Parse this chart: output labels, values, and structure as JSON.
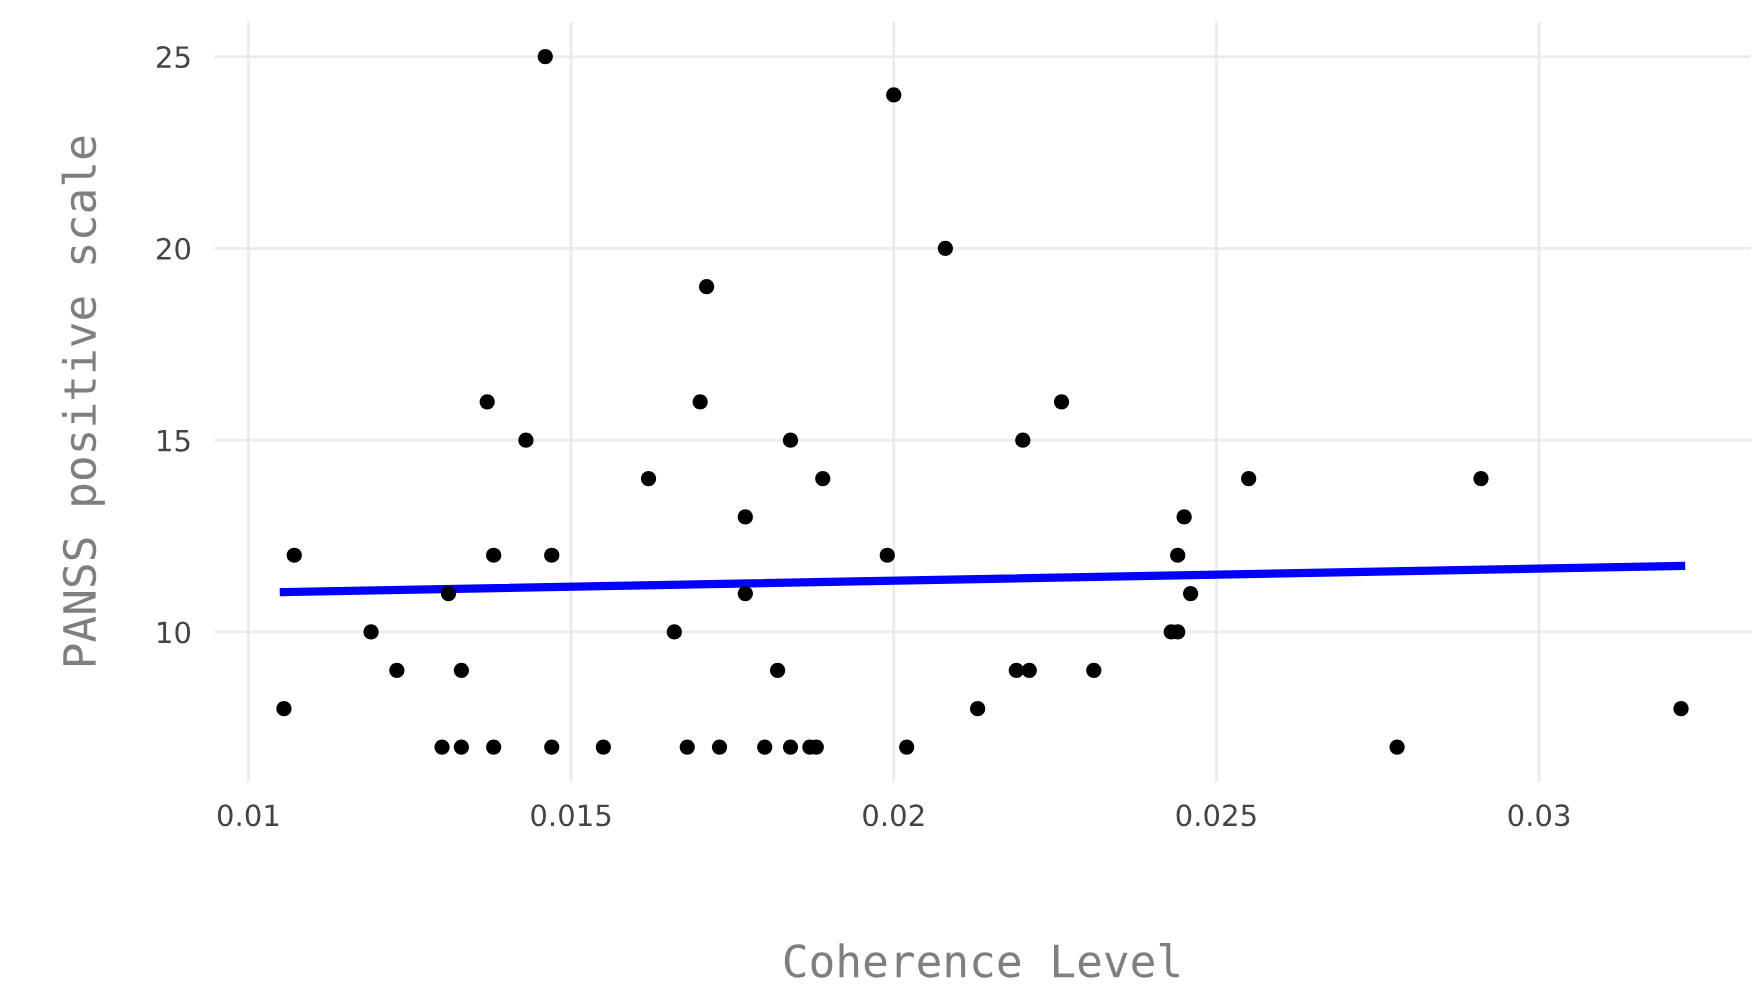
{
  "chart_data": {
    "type": "scatter",
    "xlabel": "Coherence Level",
    "ylabel": "PANSS positive scale",
    "xlim": [
      0.00947,
      0.03328
    ],
    "ylim": [
      6.1,
      25.9
    ],
    "xticks": [
      0.01,
      0.015,
      0.02,
      0.025,
      0.03
    ],
    "yticks": [
      10,
      15,
      20,
      25
    ],
    "grid": true,
    "series": [
      {
        "marker": "circle",
        "color": "#000000",
        "x": [
          0.01055,
          0.01071,
          0.0119,
          0.0123,
          0.013,
          0.0131,
          0.0133,
          0.0133,
          0.0137,
          0.0138,
          0.0138,
          0.0143,
          0.0146,
          0.0147,
          0.0147,
          0.0155,
          0.0162,
          0.0166,
          0.0168,
          0.017,
          0.0171,
          0.0173,
          0.0177,
          0.0177,
          0.018,
          0.0182,
          0.0184,
          0.0184,
          0.0187,
          0.0188,
          0.0189,
          0.0199,
          0.02,
          0.0202,
          0.0208,
          0.0213,
          0.0219,
          0.022,
          0.0221,
          0.0226,
          0.0231,
          0.0243,
          0.0244,
          0.0244,
          0.0245,
          0.0246,
          0.0255,
          0.0278,
          0.0291,
          0.0322
        ],
        "values": [
          8,
          12,
          10,
          9,
          7,
          11,
          7,
          9,
          16,
          12,
          7,
          15,
          25,
          12,
          7,
          7,
          14,
          10,
          7,
          16,
          19,
          7,
          13,
          11,
          7,
          9,
          15,
          7,
          7,
          7,
          14,
          12,
          24,
          7,
          20,
          8,
          9,
          15,
          9,
          16,
          9,
          10,
          10,
          12,
          13,
          11,
          14,
          7,
          14,
          8
        ]
      },
      {
        "type": "line",
        "color": "#0000ff",
        "x": [
          0.01055,
          0.0322
        ],
        "values": [
          11.04,
          11.72
        ]
      }
    ]
  }
}
